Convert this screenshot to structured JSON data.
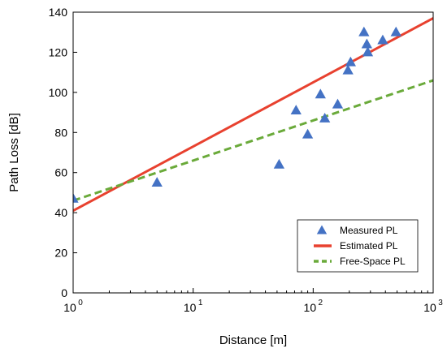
{
  "chart_data": {
    "type": "scatter",
    "xlabel": "Distance [m]",
    "ylabel": "Path Loss [dB]",
    "xscale": "log",
    "xlim": [
      1,
      1000
    ],
    "ylim": [
      0,
      140
    ],
    "x_tick_values": [
      1,
      10,
      100,
      1000
    ],
    "x_tick_labels": [
      {
        "base": "10",
        "exp": "0"
      },
      {
        "base": "10",
        "exp": "1"
      },
      {
        "base": "10",
        "exp": "2"
      },
      {
        "base": "10",
        "exp": "3"
      }
    ],
    "y_ticks": [
      0,
      20,
      40,
      60,
      80,
      100,
      120,
      140
    ],
    "grid": false,
    "legend_position": "bottom-right",
    "series": [
      {
        "name": "Measured PL",
        "kind": "scatter",
        "marker": "triangle",
        "color": "#4472C4",
        "x": [
          1,
          5,
          52,
          72,
          90,
          115,
          125,
          160,
          195,
          205,
          265,
          280,
          285,
          380,
          490
        ],
        "y": [
          47,
          55,
          64,
          91,
          79,
          99,
          87,
          94,
          111,
          115,
          130,
          124,
          120,
          126,
          130
        ]
      },
      {
        "name": "Estimated PL",
        "kind": "line",
        "style": "solid",
        "color": "#E8412F",
        "x": [
          1,
          1000
        ],
        "y": [
          41,
          137
        ]
      },
      {
        "name": "Free-Space PL",
        "kind": "line",
        "style": "dashed",
        "color": "#6AAA3A",
        "x": [
          1,
          1000
        ],
        "y": [
          46,
          106
        ]
      }
    ]
  }
}
